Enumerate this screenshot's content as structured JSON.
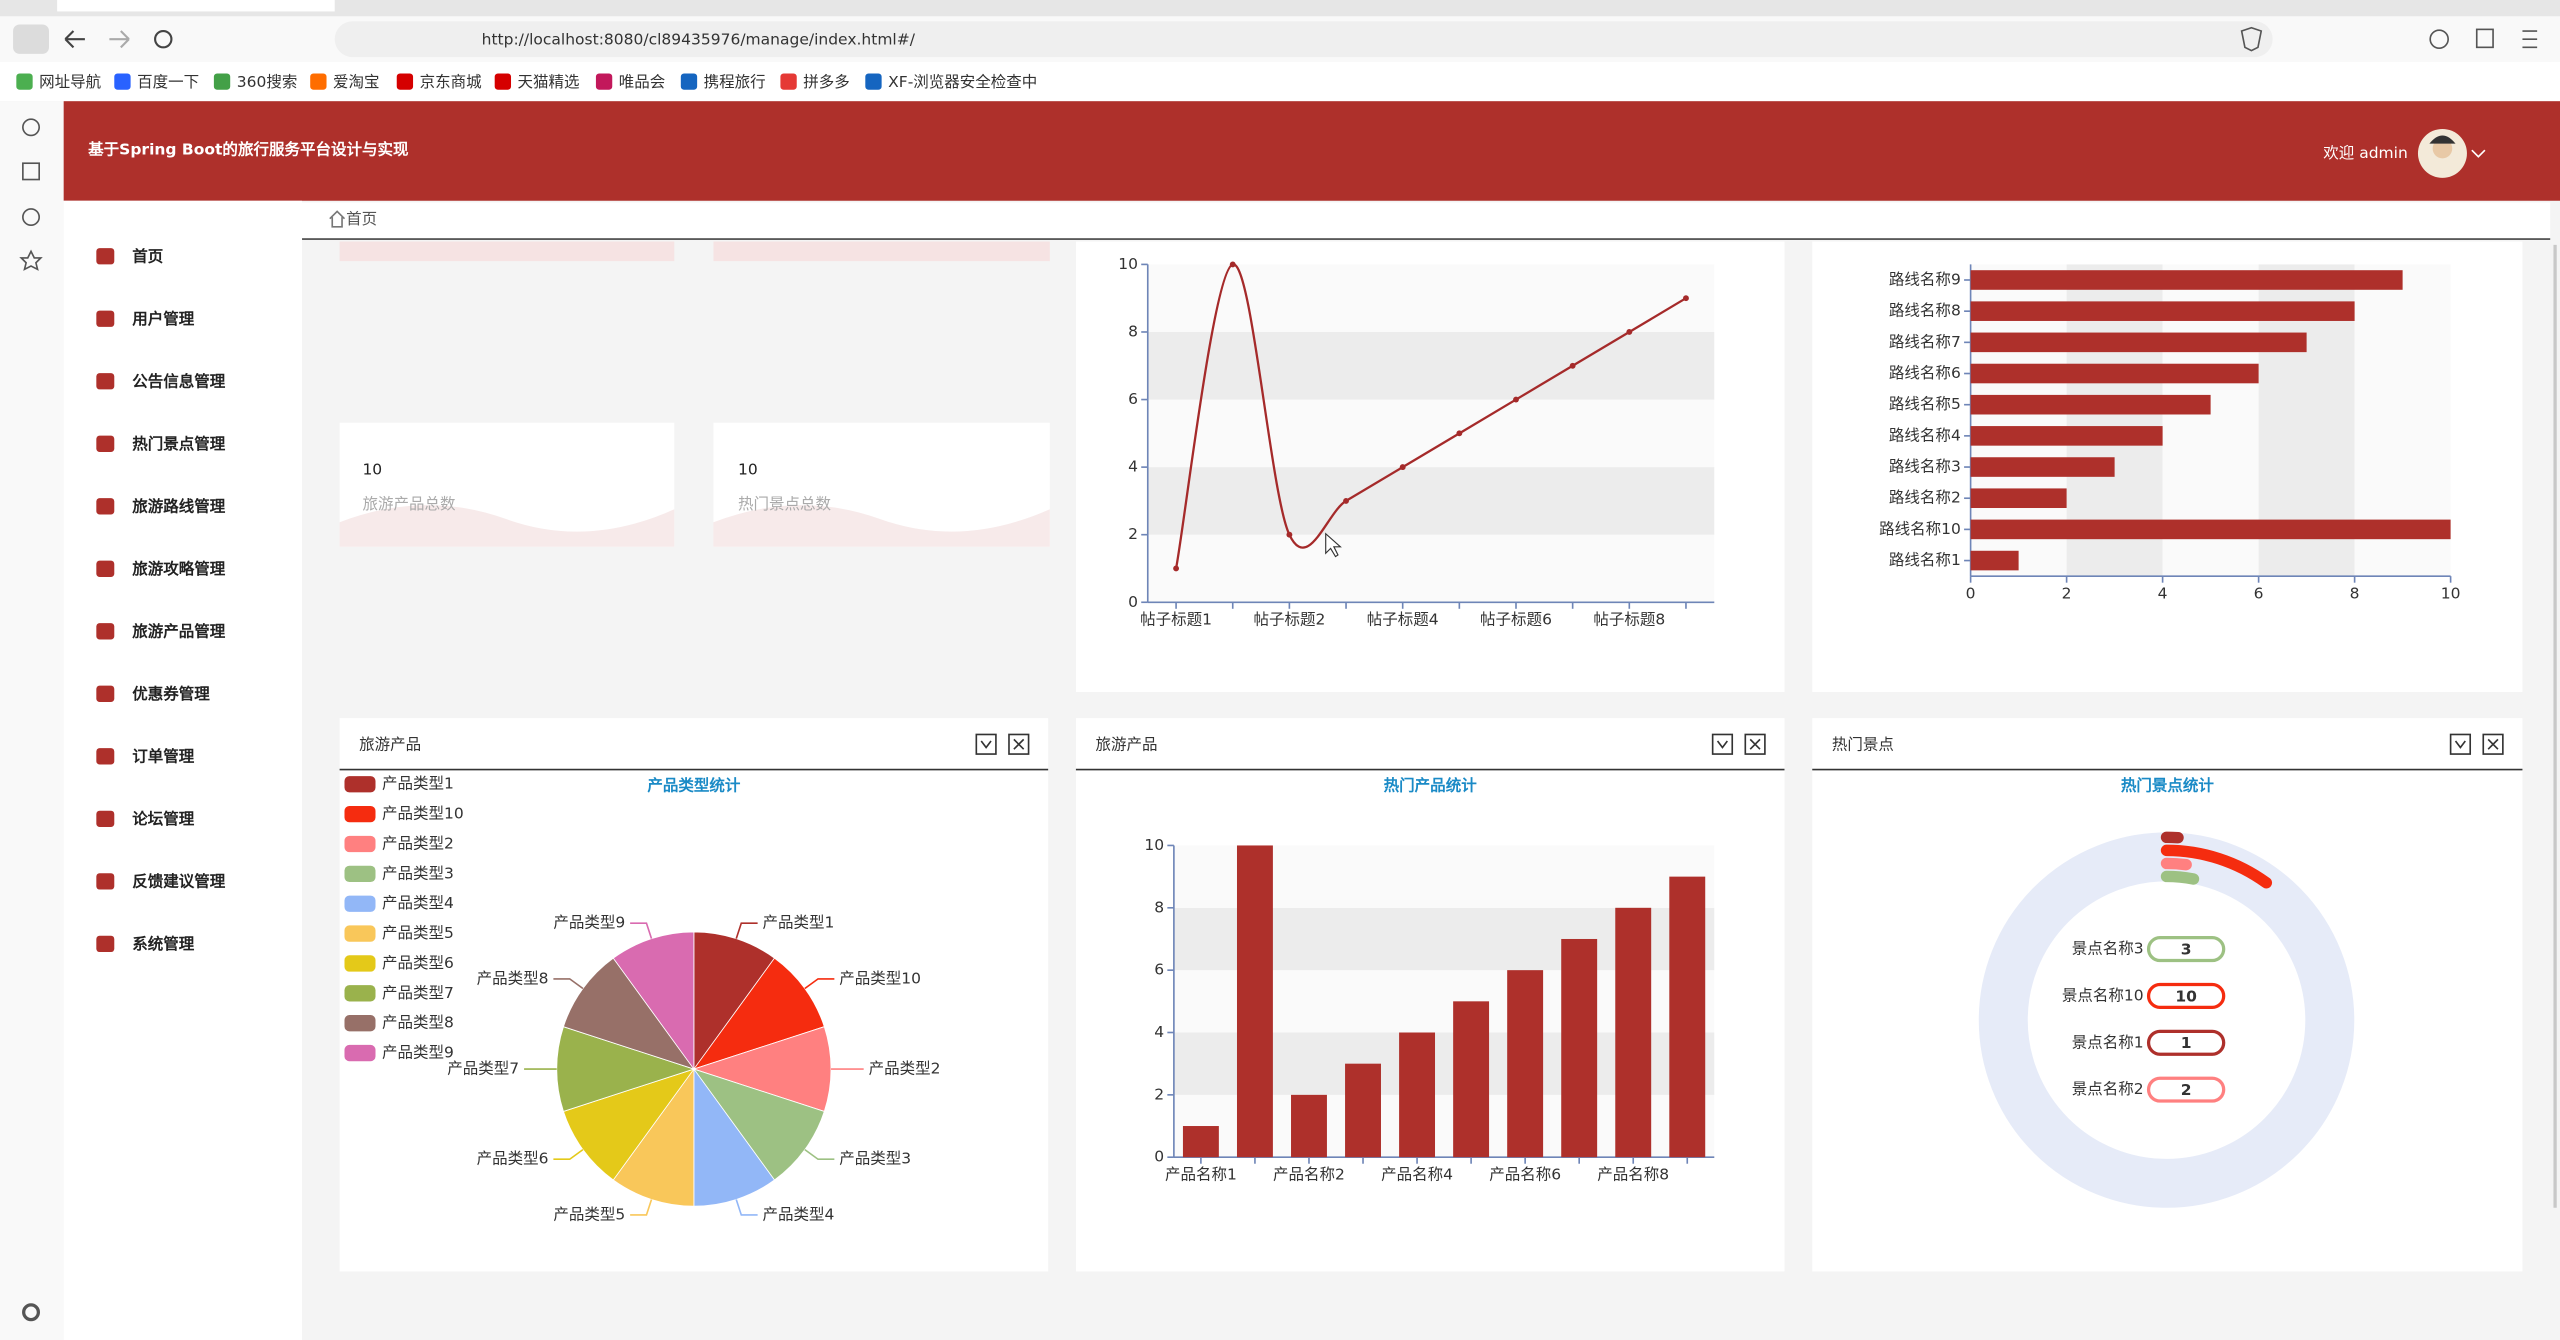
{
  "browser": {
    "url": "http://localhost:8080/cl89435976/manage/index.html#/",
    "bookmarks": [
      "网址导航",
      "百度一下",
      "360搜索",
      "爱淘宝",
      "京东商城",
      "天猫精选",
      "唯品会",
      "携程旅行",
      "拼多多",
      "XF-浏览器安全检查中"
    ]
  },
  "header": {
    "title": "基于Spring Boot的旅行服务平台设计与实现",
    "user": "欢迎 admin"
  },
  "menu": [
    "首页",
    "用户管理",
    "公告信息管理",
    "热门景点管理",
    "旅游路线管理",
    "旅游攻略管理",
    "旅游产品管理",
    "优惠券管理",
    "订单管理",
    "论坛管理",
    "反馈建议管理",
    "系统管理"
  ],
  "breadcrumb": "首页",
  "stats": [
    {
      "value": 10,
      "label": "旅游产品总数"
    },
    {
      "value": 10,
      "label": "热门景点总数"
    }
  ],
  "charts": [
    {
      "type": "line",
      "categories": [
        "帖子标题1",
        null,
        "帖子标题2",
        null,
        "帖子标题4",
        null,
        "帖子标题6",
        null,
        "帖子标题8",
        null
      ],
      "values": [
        1,
        10,
        2,
        3,
        4,
        5,
        6,
        7,
        8,
        9
      ],
      "color": "#a52a2a",
      "ylim": [
        0,
        10
      ],
      "yticks": [
        0,
        2,
        4,
        6,
        8,
        10
      ]
    },
    {
      "type": "bar",
      "horizontal": true,
      "categories": [
        "路线名称1",
        "路线名称10",
        "路线名称2",
        "路线名称3",
        "路线名称4",
        "路线名称5",
        "路线名称6",
        "路线名称7",
        "路线名称8",
        "路线名称9"
      ],
      "values": [
        1,
        10,
        2,
        3,
        4,
        5,
        6,
        7,
        8,
        9
      ],
      "color": "#ae302b",
      "xlim": [
        0,
        10
      ],
      "xticks": [
        0,
        2,
        4,
        6,
        8,
        10
      ]
    },
    {
      "type": "pie",
      "panel": "旅游产品",
      "title": "产品类型统计",
      "categories": [
        "产品类型1",
        "产品类型10",
        "产品类型2",
        "产品类型3",
        "产品类型4",
        "产品类型5",
        "产品类型6",
        "产品类型7",
        "产品类型8",
        "产品类型9"
      ],
      "values": [
        1,
        1,
        1,
        1,
        1,
        1,
        1,
        1,
        1,
        1
      ],
      "colors": [
        "#ae302b",
        "#f52c0f",
        "#ff8080",
        "#9dc183",
        "#92b7f7",
        "#f9c75a",
        "#e4c919",
        "#9ab24c",
        "#977068",
        "#d96bb0"
      ]
    },
    {
      "type": "bar",
      "panel": "旅游产品",
      "title": "热门产品统计",
      "categories": [
        "产品名称1",
        null,
        "产品名称2",
        null,
        "产品名称4",
        null,
        "产品名称6",
        null,
        "产品名称8",
        null
      ],
      "values": [
        1,
        10,
        2,
        3,
        4,
        5,
        6,
        7,
        8,
        9
      ],
      "color": "#ae302b",
      "ylim": [
        0,
        10
      ],
      "yticks": [
        0,
        2,
        4,
        6,
        8,
        10
      ]
    },
    {
      "type": "radial",
      "panel": "热门景点",
      "title": "热门景点统计",
      "categories": [
        "景点名称3",
        "景点名称10",
        "景点名称1",
        "景点名称2"
      ],
      "values": [
        3,
        10,
        1,
        2
      ],
      "colors": [
        "#9dc183",
        "#f52c0f",
        "#ae302b",
        "#ff8080"
      ]
    }
  ]
}
